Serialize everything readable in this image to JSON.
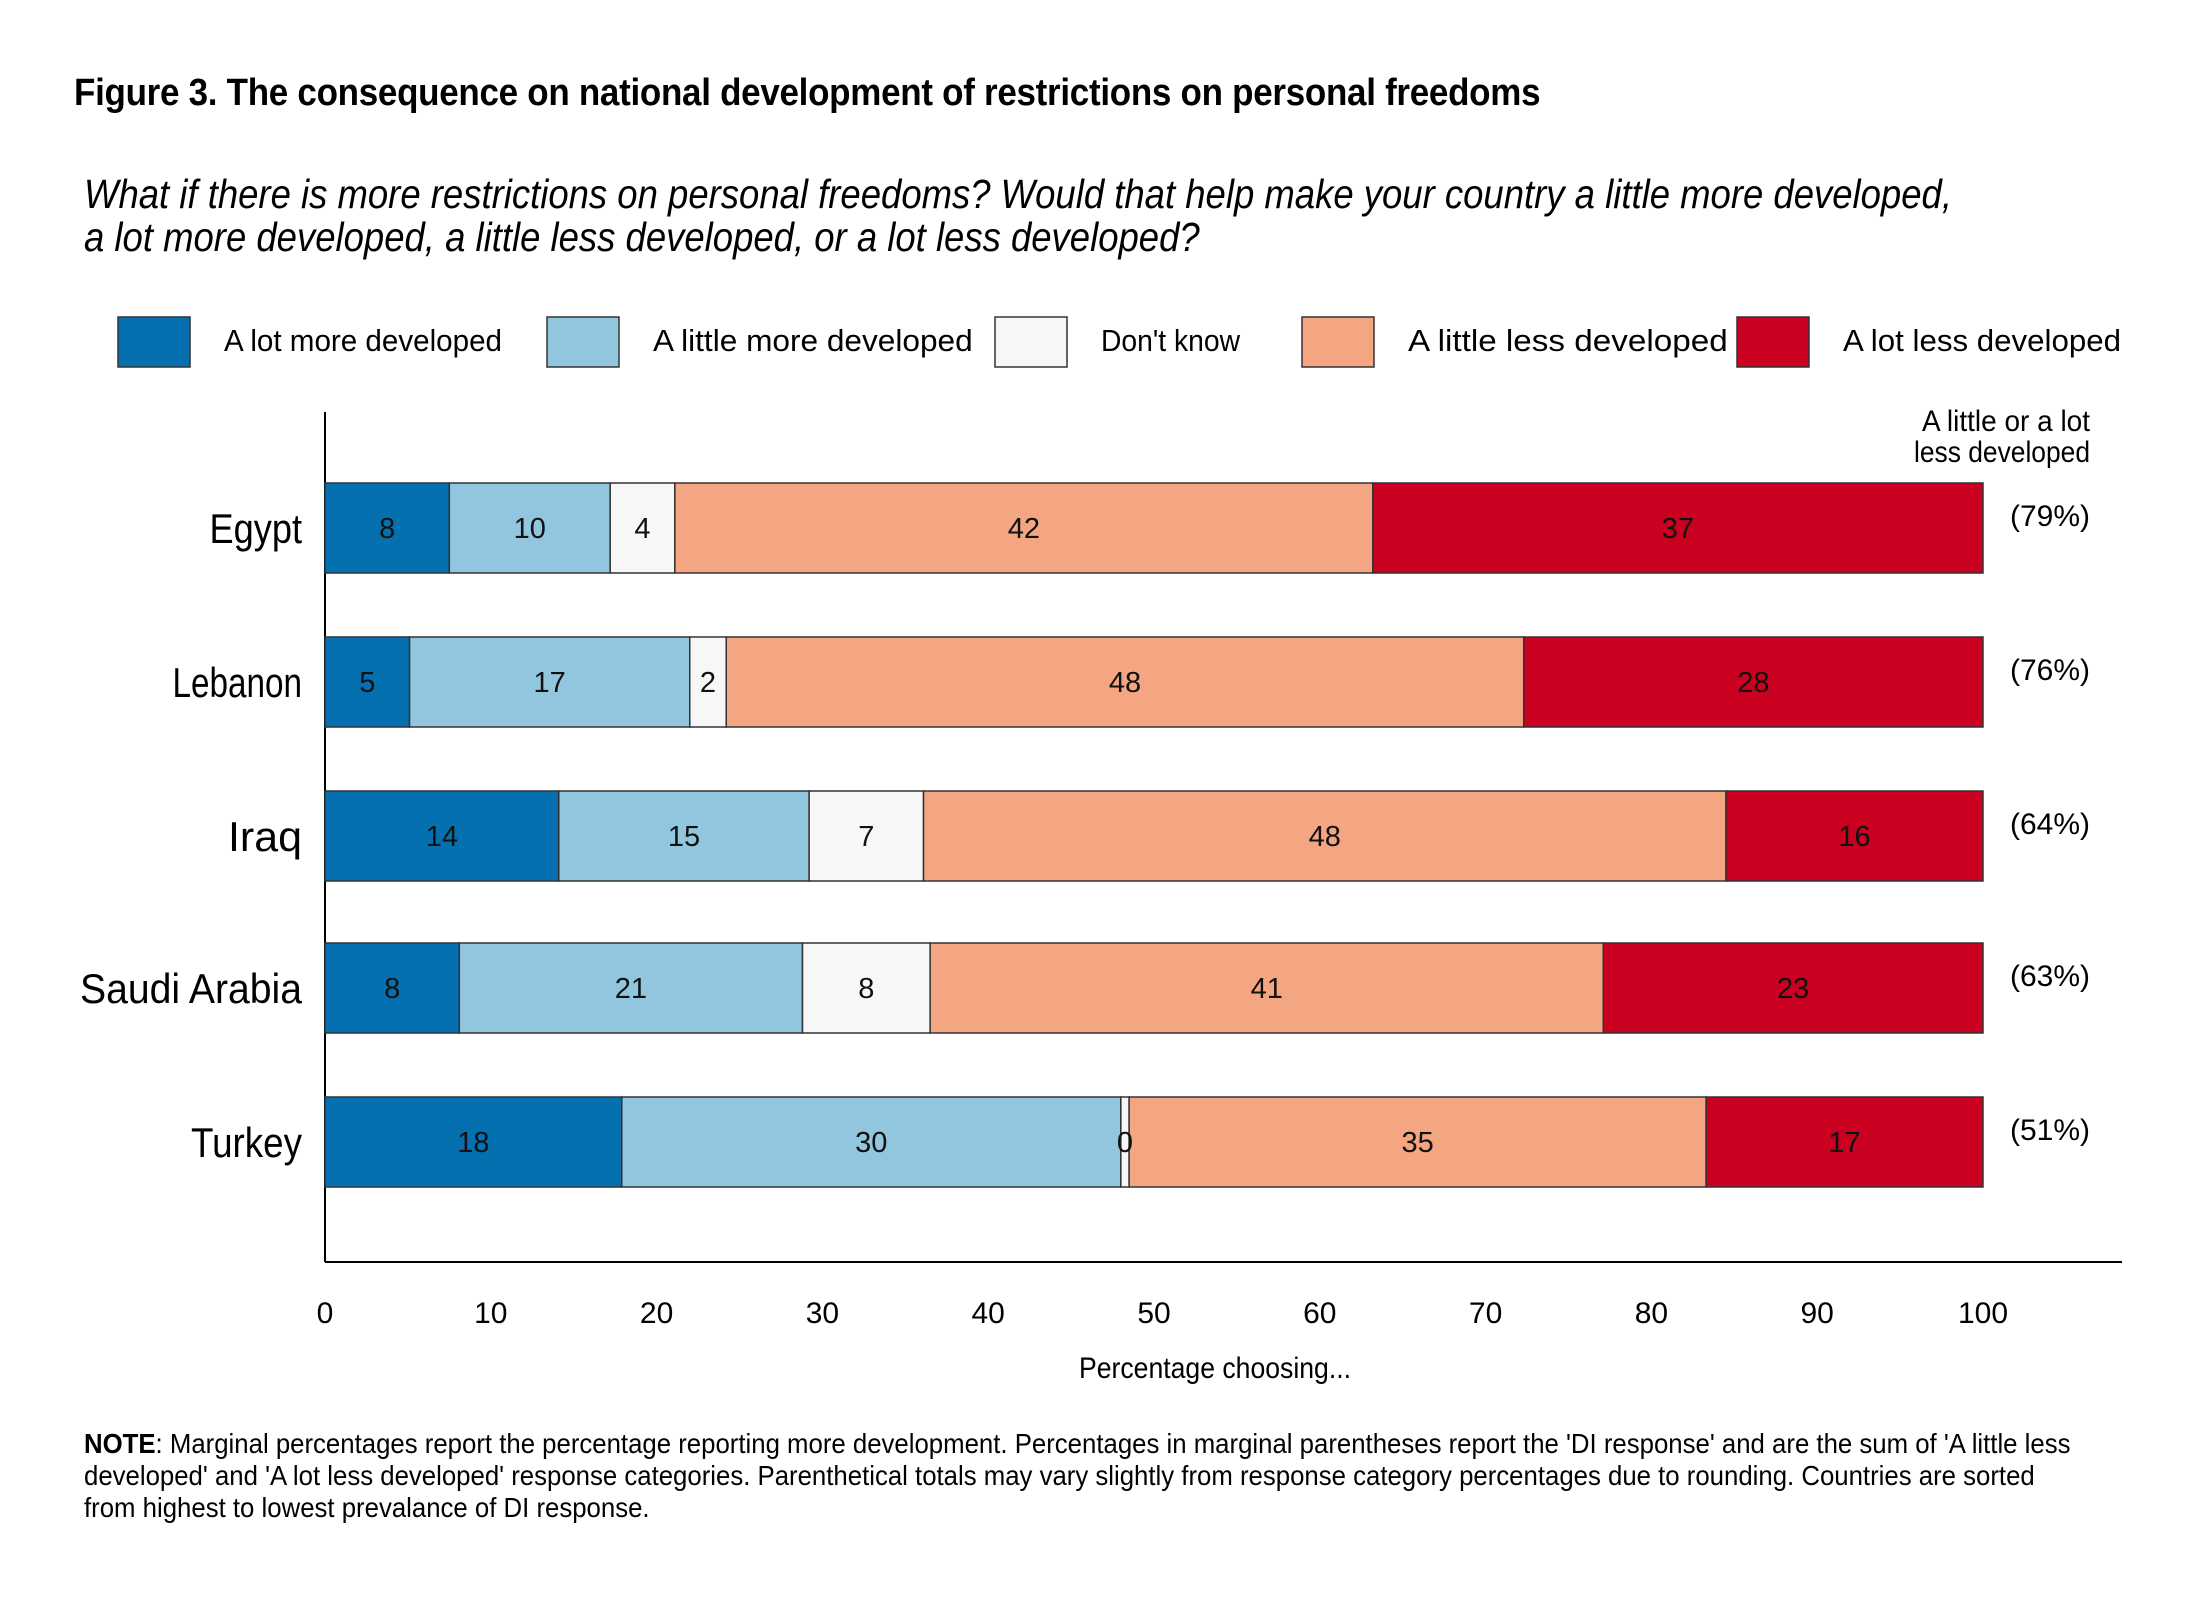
{
  "title": "Figure 3. The consequence on national development of restrictions on personal freedoms",
  "subtitle": "What if there is more restrictions on personal freedoms? Would that help make your country a little more developed, a lot more developed, a little less developed, or a lot less developed?",
  "note_label": "NOTE",
  "note_text": ": Marginal percentages report the percentage reporting more development. Percentages in marginal parentheses report the 'DI response' and are the sum of 'A little less developed' and 'A lot less developed' response categories. Parenthetical totals may vary slightly from response category percentages due to rounding. Countries are sorted from highest to lowest prevalance of DI response.",
  "chart_data": {
    "type": "bar",
    "orientation": "horizontal",
    "stacked": true,
    "categories": [
      "Egypt",
      "Lebanon",
      "Iraq",
      "Saudi Arabia",
      "Turkey"
    ],
    "series": [
      {
        "name": "A lot more developed",
        "color": "#0570b0",
        "values": [
          8,
          5,
          14,
          8,
          18
        ],
        "segments": [
          7.5,
          5.1,
          14.1,
          8.1,
          17.9
        ]
      },
      {
        "name": "A little more developed",
        "color": "#92c5de",
        "values": [
          10,
          17,
          15,
          21,
          30
        ],
        "segments": [
          9.7,
          16.9,
          15.1,
          20.7,
          30.1
        ]
      },
      {
        "name": "Don't know",
        "color": "#f7f7f7",
        "values": [
          4,
          2,
          7,
          8,
          0
        ],
        "segments": [
          3.9,
          2.2,
          6.9,
          7.7,
          0.5
        ]
      },
      {
        "name": "A little less developed",
        "color": "#f4a582",
        "values": [
          42,
          48,
          48,
          41,
          35
        ],
        "segments": [
          42.1,
          48.1,
          48.4,
          40.6,
          34.8
        ]
      },
      {
        "name": "A lot less developed",
        "color": "#ca0020",
        "values": [
          37,
          28,
          16,
          23,
          17
        ],
        "segments": [
          36.8,
          27.7,
          15.5,
          22.9,
          16.7
        ]
      }
    ],
    "marginal_header_line1": "A little  or a lot",
    "marginal_header_line2": "less developed",
    "marginal_labels": [
      "(79%)",
      "(76%)",
      "(64%)",
      "(63%)",
      "(51%)"
    ],
    "xlabel": "Percentage choosing...",
    "xlim": [
      0,
      100
    ],
    "xticks": [
      0,
      10,
      20,
      30,
      40,
      50,
      60,
      70,
      80,
      90,
      100
    ],
    "legend_position": "top",
    "grid": false
  }
}
